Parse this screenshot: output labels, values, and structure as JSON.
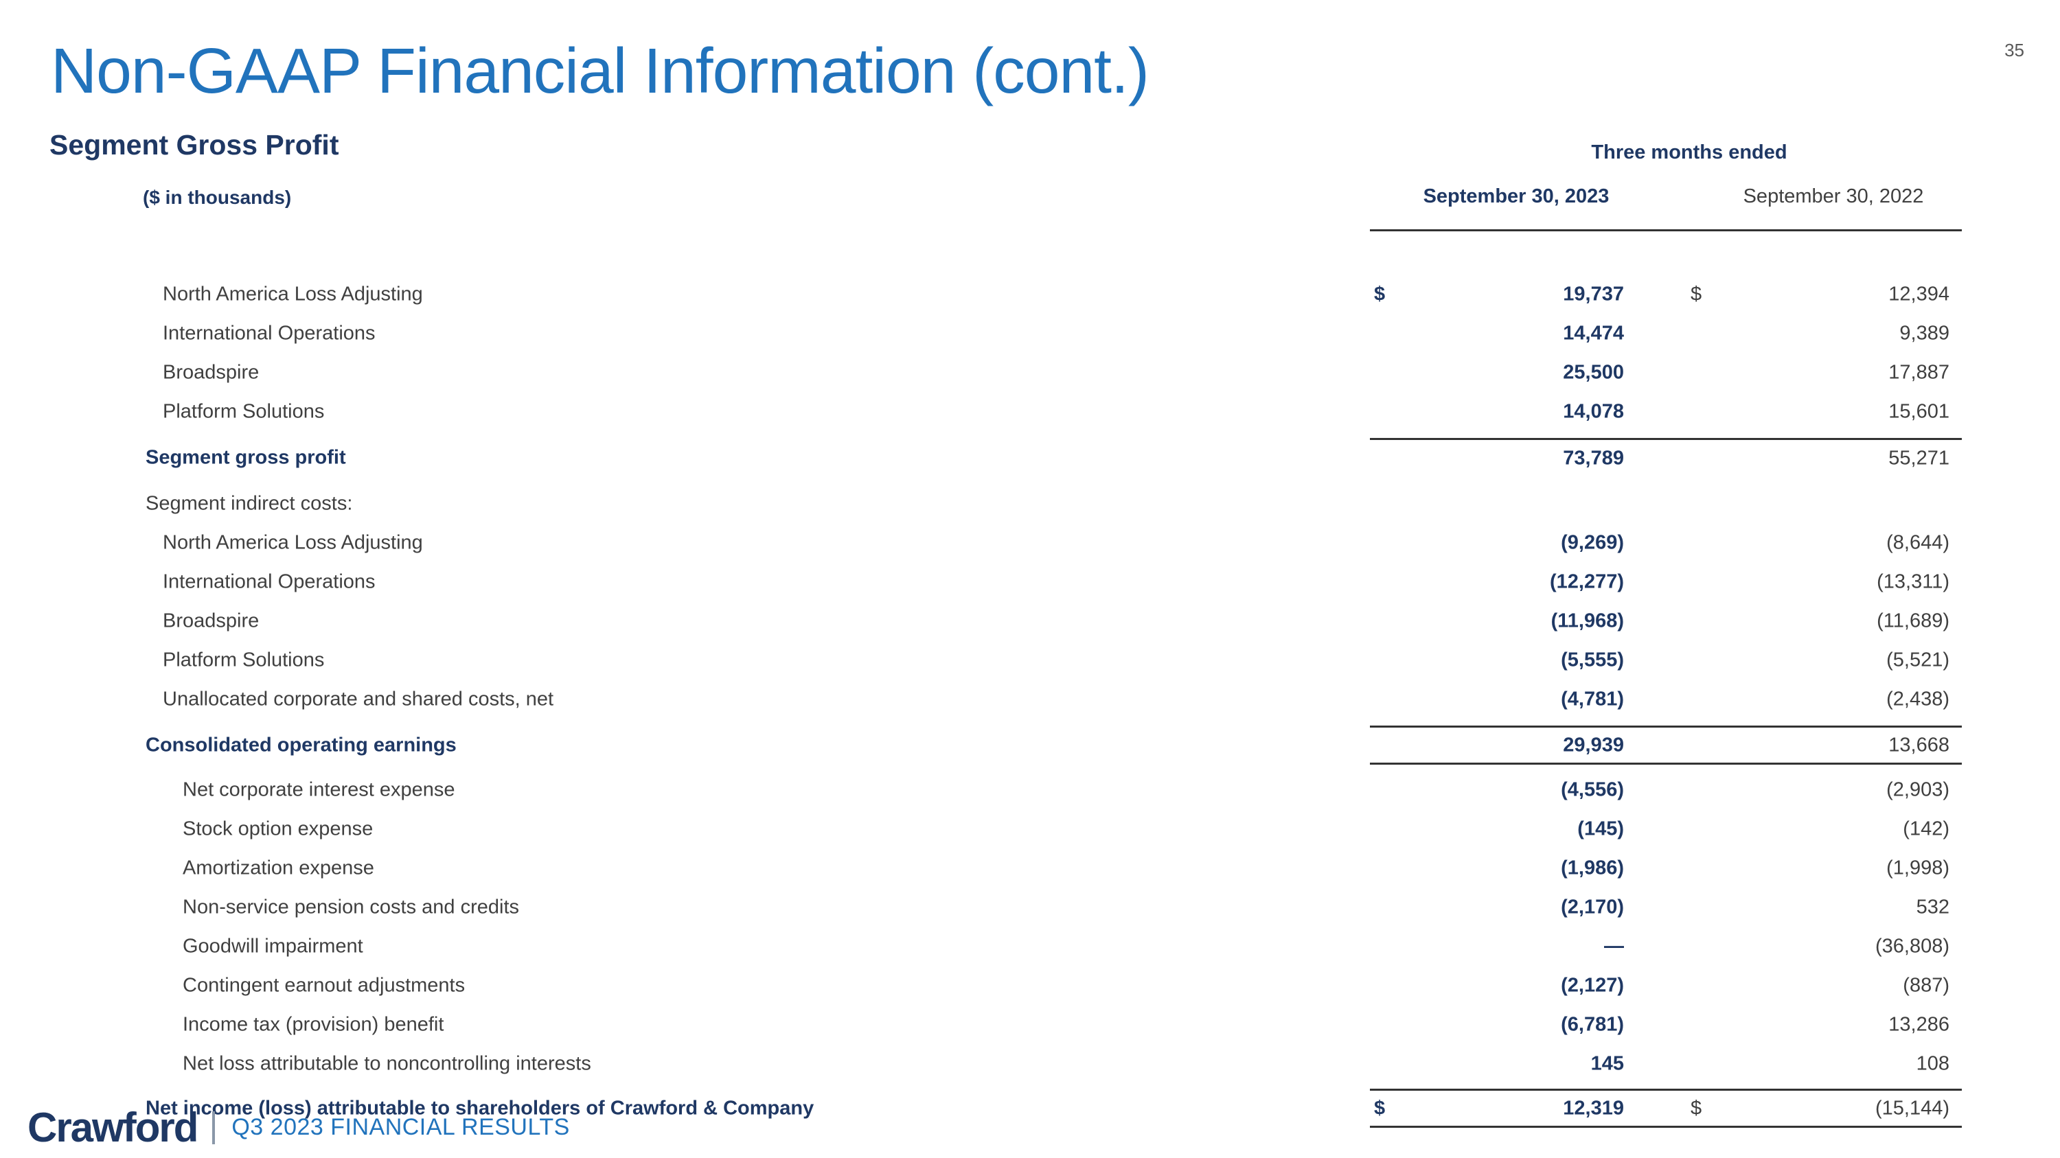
{
  "page_number": "35",
  "header": {
    "title": "Non-GAAP Financial Information (cont.)",
    "subtitle": "Segment Gross Profit",
    "units_label": "($ in thousands)"
  },
  "table": {
    "period_header": "Three months ended",
    "col_2023": "September 30, 2023",
    "col_2022": "September 30, 2022",
    "rows": [
      {
        "label": "North America Loss Adjusting",
        "indent": 2,
        "emphasis": false,
        "dollar_2023": "$",
        "dollar_2022": "$",
        "val_2023": "19,737",
        "val_2022": "12,394",
        "gap_above": 30
      },
      {
        "label": "International Operations",
        "indent": 2,
        "emphasis": false,
        "val_2023": "14,474",
        "val_2022": "9,389"
      },
      {
        "label": "Broadspire",
        "indent": 2,
        "emphasis": false,
        "val_2023": "25,500",
        "val_2022": "17,887"
      },
      {
        "label": "Platform Solutions",
        "indent": 2,
        "emphasis": false,
        "val_2023": "14,078",
        "val_2022": "15,601"
      },
      {
        "label": "Segment gross profit",
        "indent": 1,
        "emphasis": true,
        "val_2023": "73,789",
        "val_2022": "55,271",
        "rule_above": true,
        "gap_above": 10
      },
      {
        "label": "Segment indirect costs:",
        "indent": 1,
        "emphasis": false,
        "val_2023": "",
        "val_2022": "",
        "gap_above": 10
      },
      {
        "label": "North America Loss Adjusting",
        "indent": 2,
        "emphasis": false,
        "val_2023": "(9,269)",
        "val_2022": "(8,644)"
      },
      {
        "label": "International Operations",
        "indent": 2,
        "emphasis": false,
        "val_2023": "(12,277)",
        "val_2022": "(13,311)"
      },
      {
        "label": "Broadspire",
        "indent": 2,
        "emphasis": false,
        "val_2023": "(11,968)",
        "val_2022": "(11,689)"
      },
      {
        "label": "Platform Solutions",
        "indent": 2,
        "emphasis": false,
        "val_2023": "(5,555)",
        "val_2022": "(5,521)"
      },
      {
        "label": "Unallocated corporate and shared costs, net",
        "indent": 2,
        "emphasis": false,
        "val_2023": "(4,781)",
        "val_2022": "(2,438)"
      },
      {
        "label": "Consolidated operating earnings",
        "indent": 1,
        "emphasis": true,
        "val_2023": "29,939",
        "val_2022": "13,668",
        "rule_above": true,
        "rule_below": true,
        "gap_above": 10
      },
      {
        "label": "Net corporate interest expense",
        "indent": 3,
        "emphasis": false,
        "val_2023": "(4,556)",
        "val_2022": "(2,903)",
        "gap_above": 8
      },
      {
        "label": "Stock option expense",
        "indent": 3,
        "emphasis": false,
        "val_2023": "(145)",
        "val_2022": "(142)"
      },
      {
        "label": "Amortization expense",
        "indent": 3,
        "emphasis": false,
        "val_2023": "(1,986)",
        "val_2022": "(1,998)"
      },
      {
        "label": "Non-service pension costs and credits",
        "indent": 3,
        "emphasis": false,
        "val_2023": "(2,170)",
        "val_2022": "532"
      },
      {
        "label": "Goodwill impairment",
        "indent": 3,
        "emphasis": false,
        "val_2023": "—",
        "val_2022": "(36,808)"
      },
      {
        "label": "Contingent earnout adjustments",
        "indent": 3,
        "emphasis": false,
        "val_2023": "(2,127)",
        "val_2022": "(887)"
      },
      {
        "label": "Income tax (provision) benefit",
        "indent": 3,
        "emphasis": false,
        "val_2023": "(6,781)",
        "val_2022": "13,286"
      },
      {
        "label": "Net loss attributable to noncontrolling interests",
        "indent": 3,
        "emphasis": false,
        "val_2023": "145",
        "val_2022": "108"
      },
      {
        "label": "Net income (loss) attributable to shareholders of Crawford & Company",
        "indent": 1,
        "emphasis": true,
        "dollar_2023": "$",
        "dollar_2022": "$",
        "val_2023": "12,319",
        "val_2022": "(15,144)",
        "rule_above": true,
        "rule_below": true,
        "gap_above": 8
      }
    ]
  },
  "footer": {
    "logo_text": "Crawford",
    "caption": "Q3 2023 FINANCIAL RESULTS"
  },
  "colors": {
    "accent_blue": "#2173BC",
    "navy": "#1F3864",
    "body_text": "#404040"
  }
}
